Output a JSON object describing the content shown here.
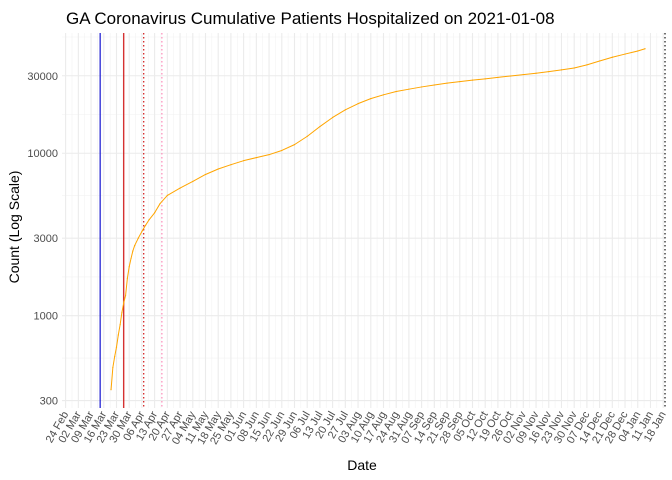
{
  "chart_data": {
    "type": "line",
    "title": "GA Coronavirus Cumulative Patients Hospitalized on 2021-01-08",
    "xlabel": "Date",
    "ylabel": "Count (Log Scale)",
    "y_scale": "log",
    "ylim": [
      270,
      55000
    ],
    "xlim": [
      "2020-02-22",
      "2021-01-19"
    ],
    "grid": true,
    "legend": "none",
    "y_ticks": [
      300,
      1000,
      3000,
      10000,
      30000
    ],
    "y_tick_labels": [
      "300",
      "1000",
      "3000",
      "10000",
      "30000"
    ],
    "x_tick_labels": [
      "24 Feb",
      "02 Mar",
      "09 Mar",
      "16 Mar",
      "23 Mar",
      "30 Mar",
      "06 Apr",
      "13 Apr",
      "20 Apr",
      "27 Apr",
      "04 May",
      "11 May",
      "18 May",
      "25 May",
      "01 Jun",
      "08 Jun",
      "15 Jun",
      "22 Jun",
      "29 Jun",
      "06 Jul",
      "13 Jul",
      "20 Jul",
      "27 Jul",
      "03 Aug",
      "10 Aug",
      "17 Aug",
      "24 Aug",
      "31 Aug",
      "07 Sep",
      "14 Sep",
      "21 Sep",
      "28 Sep",
      "05 Oct",
      "12 Oct",
      "19 Oct",
      "26 Oct",
      "02 Nov",
      "09 Nov",
      "16 Nov",
      "23 Nov",
      "30 Nov",
      "07 Dec",
      "14 Dec",
      "21 Dec",
      "28 Dec",
      "04 Jan",
      "11 Jan",
      "18 Jan"
    ],
    "x_tick_dates": [
      "2020-02-24",
      "2020-03-02",
      "2020-03-09",
      "2020-03-16",
      "2020-03-23",
      "2020-03-30",
      "2020-04-06",
      "2020-04-13",
      "2020-04-20",
      "2020-04-27",
      "2020-05-04",
      "2020-05-11",
      "2020-05-18",
      "2020-05-25",
      "2020-06-01",
      "2020-06-08",
      "2020-06-15",
      "2020-06-22",
      "2020-06-29",
      "2020-07-06",
      "2020-07-13",
      "2020-07-20",
      "2020-07-27",
      "2020-08-03",
      "2020-08-10",
      "2020-08-17",
      "2020-08-24",
      "2020-08-31",
      "2020-09-07",
      "2020-09-14",
      "2020-09-21",
      "2020-09-28",
      "2020-10-05",
      "2020-10-12",
      "2020-10-19",
      "2020-10-26",
      "2020-11-02",
      "2020-11-09",
      "2020-11-16",
      "2020-11-23",
      "2020-11-30",
      "2020-12-07",
      "2020-12-14",
      "2020-12-21",
      "2020-12-28",
      "2021-01-04",
      "2021-01-11",
      "2021-01-18"
    ],
    "series": [
      {
        "color": "#FFA500",
        "points": [
          [
            "2020-03-20",
            350
          ],
          [
            "2020-03-21",
            480
          ],
          [
            "2020-03-22",
            560
          ],
          [
            "2020-03-23",
            640
          ],
          [
            "2020-03-24",
            760
          ],
          [
            "2020-03-25",
            880
          ],
          [
            "2020-03-26",
            1050
          ],
          [
            "2020-03-27",
            1200
          ],
          [
            "2020-03-28",
            1330
          ],
          [
            "2020-03-29",
            1700
          ],
          [
            "2020-03-30",
            2000
          ],
          [
            "2020-03-31",
            2250
          ],
          [
            "2020-04-01",
            2500
          ],
          [
            "2020-04-02",
            2700
          ],
          [
            "2020-04-04",
            3000
          ],
          [
            "2020-04-06",
            3300
          ],
          [
            "2020-04-08",
            3600
          ],
          [
            "2020-04-10",
            3900
          ],
          [
            "2020-04-13",
            4300
          ],
          [
            "2020-04-16",
            4900
          ],
          [
            "2020-04-20",
            5500
          ],
          [
            "2020-04-27",
            6100
          ],
          [
            "2020-05-04",
            6700
          ],
          [
            "2020-05-11",
            7400
          ],
          [
            "2020-05-18",
            8000
          ],
          [
            "2020-05-25",
            8500
          ],
          [
            "2020-06-01",
            9000
          ],
          [
            "2020-06-08",
            9400
          ],
          [
            "2020-06-15",
            9800
          ],
          [
            "2020-06-22",
            10400
          ],
          [
            "2020-06-29",
            11300
          ],
          [
            "2020-07-06",
            12700
          ],
          [
            "2020-07-13",
            14600
          ],
          [
            "2020-07-20",
            16600
          ],
          [
            "2020-07-27",
            18500
          ],
          [
            "2020-08-03",
            20200
          ],
          [
            "2020-08-10",
            21700
          ],
          [
            "2020-08-17",
            22900
          ],
          [
            "2020-08-24",
            24000
          ],
          [
            "2020-08-31",
            24800
          ],
          [
            "2020-09-07",
            25600
          ],
          [
            "2020-09-14",
            26300
          ],
          [
            "2020-09-21",
            27000
          ],
          [
            "2020-09-28",
            27600
          ],
          [
            "2020-10-05",
            28200
          ],
          [
            "2020-10-12",
            28700
          ],
          [
            "2020-10-19",
            29300
          ],
          [
            "2020-10-26",
            29900
          ],
          [
            "2020-11-02",
            30500
          ],
          [
            "2020-11-09",
            31100
          ],
          [
            "2020-11-16",
            31800
          ],
          [
            "2020-11-23",
            32600
          ],
          [
            "2020-11-30",
            33500
          ],
          [
            "2020-12-07",
            35000
          ],
          [
            "2020-12-14",
            37000
          ],
          [
            "2020-12-21",
            39000
          ],
          [
            "2020-12-28",
            40800
          ],
          [
            "2021-01-04",
            42600
          ],
          [
            "2021-01-08",
            44000
          ]
        ]
      }
    ],
    "vertical_lines": [
      {
        "date": "2020-03-14",
        "color": "#0000CD",
        "style": "solid"
      },
      {
        "date": "2020-03-27",
        "color": "#CC0000",
        "style": "solid"
      },
      {
        "date": "2020-04-07",
        "color": "#CC0000",
        "style": "dotted"
      },
      {
        "date": "2020-04-17",
        "color": "#FF82B4",
        "style": "dotted"
      },
      {
        "date": "2021-01-19",
        "color": "#000000",
        "style": "dotted"
      }
    ]
  }
}
